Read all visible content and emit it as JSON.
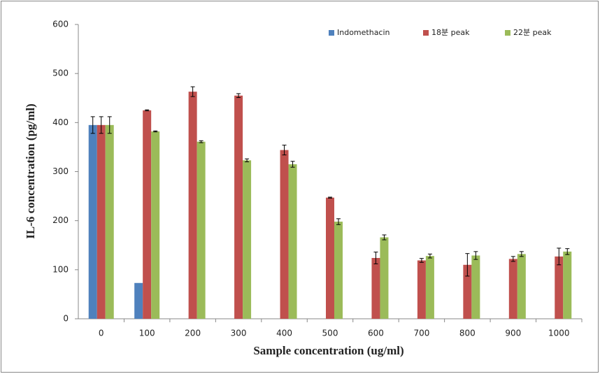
{
  "chart_data": {
    "type": "bar",
    "x_label": "Sample concentration (ug/ml)",
    "y_label": "IL-6 concentration (pg/ml)",
    "categories": [
      "0",
      "100",
      "200",
      "300",
      "400",
      "500",
      "600",
      "700",
      "800",
      "900",
      "1000"
    ],
    "series": [
      {
        "name": "Indomethacin",
        "color": "#4f81bd",
        "values": [
          395,
          73,
          null,
          null,
          null,
          null,
          null,
          null,
          null,
          null,
          null
        ],
        "errors": [
          17,
          null,
          null,
          null,
          null,
          null,
          null,
          null,
          null,
          null,
          null
        ]
      },
      {
        "name": "18분 peak",
        "color": "#c0504d",
        "values": [
          395,
          425,
          463,
          455,
          344,
          247,
          124,
          119,
          110,
          122,
          127
        ],
        "errors": [
          17,
          1,
          10,
          4,
          10,
          1,
          12,
          4,
          23,
          5,
          17
        ]
      },
      {
        "name": "22분 peak",
        "color": "#9bbb59",
        "values": [
          395,
          382,
          361,
          323,
          315,
          198,
          166,
          128,
          129,
          132,
          137
        ],
        "errors": [
          17,
          1,
          2,
          3,
          6,
          6,
          5,
          4,
          8,
          5,
          6
        ]
      }
    ],
    "ylim": [
      0,
      600
    ],
    "yticks": [
      0,
      100,
      200,
      300,
      400,
      500,
      600
    ],
    "legend": "upper right"
  }
}
